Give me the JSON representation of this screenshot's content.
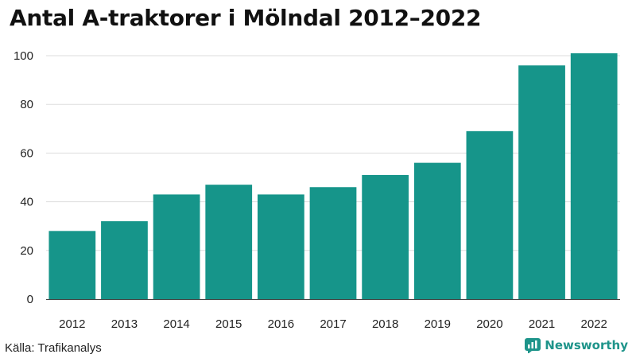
{
  "title": "Antal A-traktorer i Mölndal 2012–2022",
  "source": "Källa: Trafikanalys",
  "brand": {
    "name": "Newsworthy",
    "icon": "newsworthy-logo-icon",
    "color": "#1e948a"
  },
  "chart_data": {
    "type": "bar",
    "categories": [
      "2012",
      "2013",
      "2014",
      "2015",
      "2016",
      "2017",
      "2018",
      "2019",
      "2020",
      "2021",
      "2022"
    ],
    "values": [
      28,
      32,
      43,
      47,
      43,
      46,
      51,
      56,
      69,
      96,
      101
    ],
    "ylim": [
      0,
      100
    ],
    "yticks": [
      0,
      20,
      40,
      60,
      80,
      100
    ],
    "bar_color": "#16958a",
    "grid": true,
    "xlabel": "",
    "ylabel": ""
  }
}
